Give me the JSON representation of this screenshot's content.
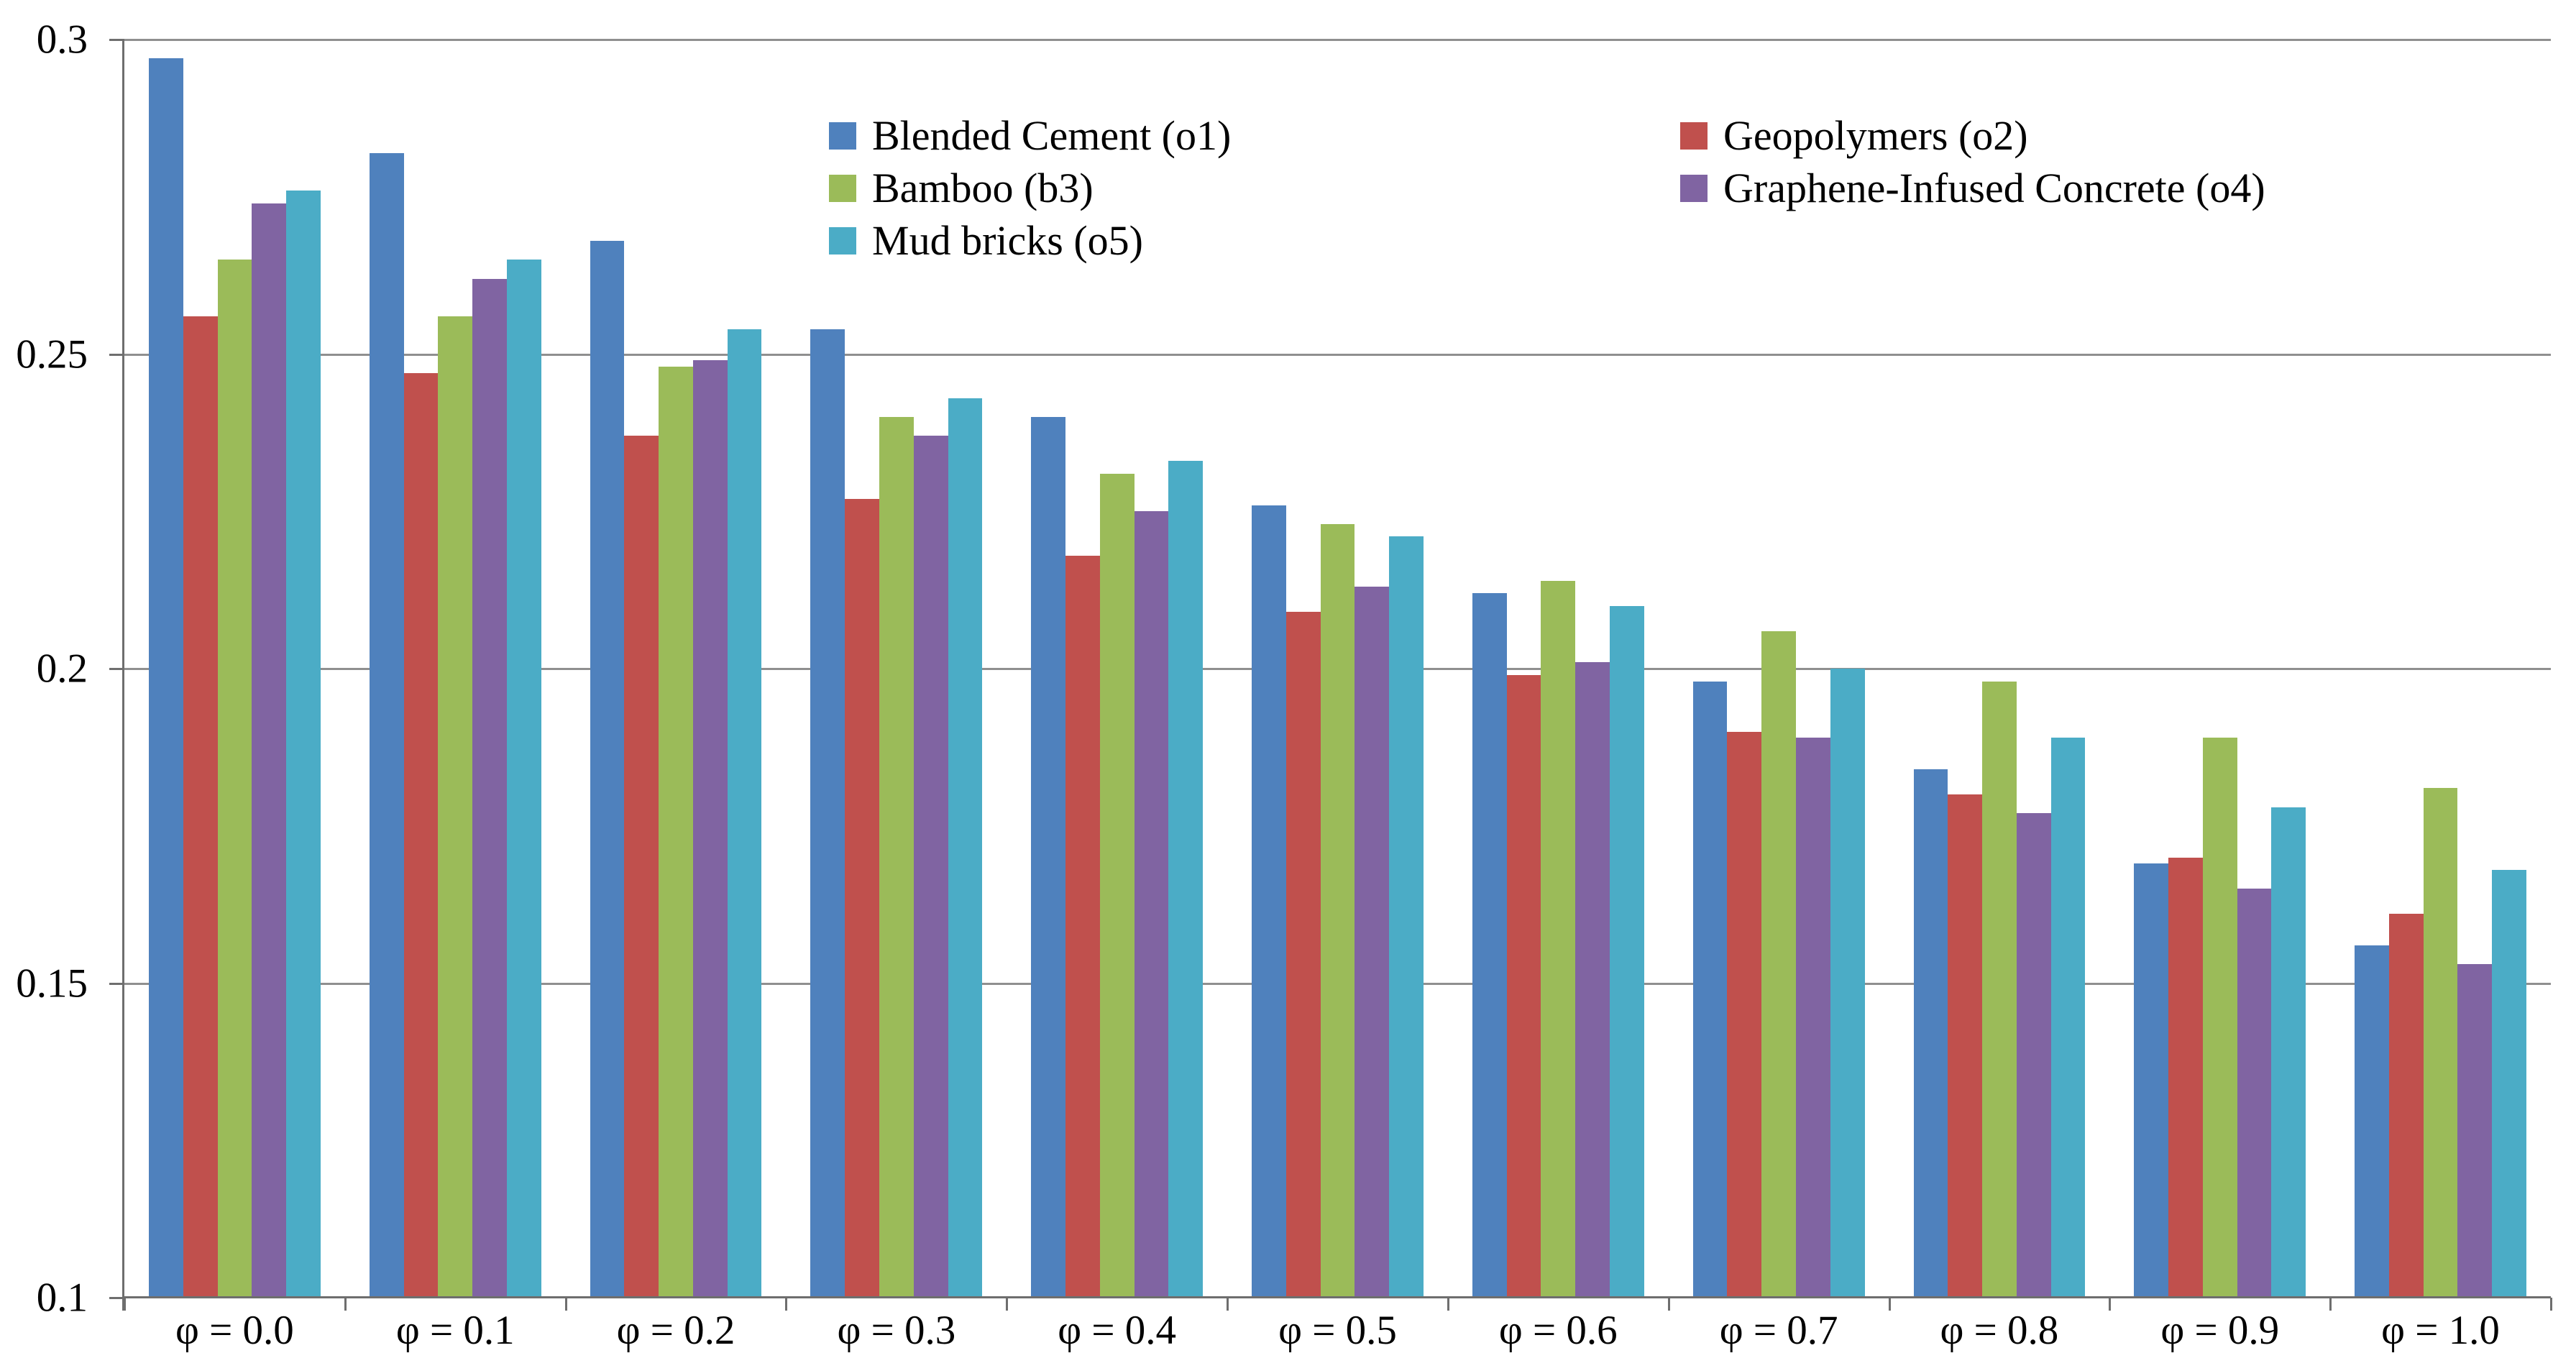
{
  "chart_data": {
    "type": "bar",
    "title": "",
    "xlabel": "",
    "ylabel": "",
    "categories": [
      "φ = 0.0",
      "φ = 0.1",
      "φ = 0.2",
      "φ = 0.3",
      "φ = 0.4",
      "φ = 0.5",
      "φ = 0.6",
      "φ = 0.7",
      "φ = 0.8",
      "φ = 0.9",
      "φ = 1.0"
    ],
    "series": [
      {
        "name": "Blended Cement (o1)",
        "color": "#4F81BD",
        "values": [
          0.297,
          0.282,
          0.268,
          0.254,
          0.24,
          0.226,
          0.212,
          0.198,
          0.184,
          0.169,
          0.156
        ]
      },
      {
        "name": "Geopolymers (o2)",
        "color": "#C0504D",
        "values": [
          0.256,
          0.247,
          0.237,
          0.227,
          0.218,
          0.209,
          0.199,
          0.19,
          0.18,
          0.17,
          0.161
        ]
      },
      {
        "name": "Bamboo (b3)",
        "color": "#9BBB59",
        "values": [
          0.265,
          0.256,
          0.248,
          0.24,
          0.231,
          0.223,
          0.214,
          0.206,
          0.198,
          0.189,
          0.181
        ]
      },
      {
        "name": "Graphene-Infused Concrete (o4)",
        "color": "#8064A2",
        "values": [
          0.274,
          0.262,
          0.249,
          0.237,
          0.225,
          0.213,
          0.201,
          0.189,
          0.177,
          0.165,
          0.153
        ]
      },
      {
        "name": "Mud bricks (o5)",
        "color": "#4BACC6",
        "values": [
          0.276,
          0.265,
          0.254,
          0.243,
          0.233,
          0.221,
          0.21,
          0.2,
          0.189,
          0.178,
          0.168
        ]
      }
    ],
    "y_axis": {
      "min": 0.1,
      "max": 0.3,
      "tick_labels": [
        "0.3",
        "0.25",
        "0.2",
        "0.15",
        "0.1"
      ],
      "tick_values": [
        0.3,
        0.25,
        0.2,
        0.15,
        0.1
      ]
    },
    "grid": true,
    "legend_position": "top-center-inside",
    "legend_columns": [
      [
        0,
        2,
        4
      ],
      [
        1,
        3
      ]
    ],
    "legend_column_x": [
      1153,
      2337
    ],
    "colors": {
      "gridline": "#8f8f8f",
      "axis": "#6e6e6e",
      "text": "#000000",
      "background": "#ffffff"
    }
  }
}
